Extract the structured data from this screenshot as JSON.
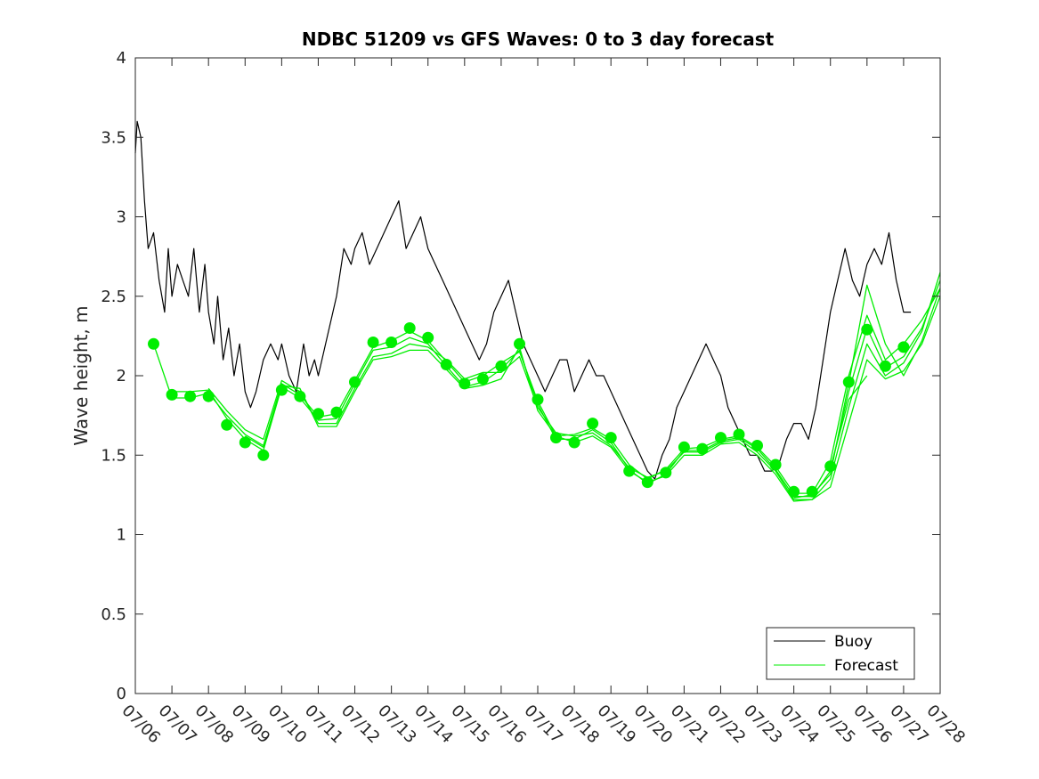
{
  "chart_data": {
    "type": "line",
    "title": "NDBC 51209 vs GFS Waves: 0 to 3 day forecast",
    "xlabel": "",
    "ylabel": "Wave height, m",
    "xlim": [
      0,
      22
    ],
    "ylim": [
      0,
      4
    ],
    "yticks": [
      0,
      0.5,
      1,
      1.5,
      2,
      2.5,
      3,
      3.5,
      4
    ],
    "ytick_labels": [
      "0",
      "0.5",
      "1",
      "1.5",
      "2",
      "2.5",
      "3",
      "3.5",
      "4"
    ],
    "xtick_labels": [
      "07/06",
      "07/07",
      "07/08",
      "07/09",
      "07/10",
      "07/11",
      "07/12",
      "07/13",
      "07/14",
      "07/15",
      "07/16",
      "07/17",
      "07/18",
      "07/19",
      "07/20",
      "07/21",
      "07/22",
      "07/23",
      "07/24",
      "07/25",
      "07/26",
      "07/27",
      "07/28"
    ],
    "legend": {
      "position": "bottom-right",
      "entries": [
        "Buoy",
        "Forecast"
      ]
    },
    "colors": {
      "buoy": "#000000",
      "forecast": "#00ee00",
      "axis": "#262626"
    },
    "series": [
      {
        "name": "Buoy",
        "x": [
          0,
          0.05,
          0.15,
          0.25,
          0.35,
          0.5,
          0.65,
          0.8,
          0.9,
          1.0,
          1.15,
          1.3,
          1.45,
          1.6,
          1.75,
          1.9,
          2.0,
          2.15,
          2.25,
          2.4,
          2.55,
          2.7,
          2.85,
          3.0,
          3.15,
          3.3,
          3.5,
          3.7,
          3.9,
          4.0,
          4.2,
          4.4,
          4.6,
          4.75,
          4.9,
          5.0,
          5.2,
          5.4,
          5.5,
          5.7,
          5.9,
          6.0,
          6.2,
          6.4,
          6.6,
          6.8,
          7.0,
          7.2,
          7.4,
          7.6,
          7.8,
          8.0,
          8.2,
          8.4,
          8.6,
          8.8,
          9.0,
          9.2,
          9.4,
          9.6,
          9.8,
          10.0,
          10.2,
          10.4,
          10.6,
          10.8,
          11.0,
          11.2,
          11.4,
          11.6,
          11.8,
          12.0,
          12.2,
          12.4,
          12.6,
          12.8,
          13.0,
          13.2,
          13.4,
          13.6,
          13.8,
          14.0,
          14.2,
          14.4,
          14.6,
          14.8,
          15.0,
          15.2,
          15.4,
          15.6,
          15.8,
          16.0,
          16.2,
          16.4,
          16.6,
          16.8,
          17.0,
          17.2,
          17.4,
          17.6,
          17.8,
          18.0,
          18.2,
          18.4,
          18.6,
          18.8,
          19.0,
          19.2,
          19.4,
          19.6,
          19.8,
          20.0,
          20.2,
          20.4,
          20.6,
          20.8,
          21.0,
          21.2
        ],
        "values": [
          3.4,
          3.6,
          3.5,
          3.1,
          2.8,
          2.9,
          2.6,
          2.4,
          2.8,
          2.5,
          2.7,
          2.6,
          2.5,
          2.8,
          2.4,
          2.7,
          2.4,
          2.2,
          2.5,
          2.1,
          2.3,
          2.0,
          2.2,
          1.9,
          1.8,
          1.9,
          2.1,
          2.2,
          2.1,
          2.2,
          2.0,
          1.9,
          2.2,
          2.0,
          2.1,
          2.0,
          2.2,
          2.4,
          2.5,
          2.8,
          2.7,
          2.8,
          2.9,
          2.7,
          2.8,
          2.9,
          3.0,
          3.1,
          2.8,
          2.9,
          3.0,
          2.8,
          2.7,
          2.6,
          2.5,
          2.4,
          2.3,
          2.2,
          2.1,
          2.2,
          2.4,
          2.5,
          2.6,
          2.4,
          2.2,
          2.1,
          2.0,
          1.9,
          2.0,
          2.1,
          2.1,
          1.9,
          2.0,
          2.1,
          2.0,
          2.0,
          1.9,
          1.8,
          1.7,
          1.6,
          1.5,
          1.4,
          1.35,
          1.5,
          1.6,
          1.8,
          1.9,
          2.0,
          2.1,
          2.2,
          2.1,
          2.0,
          1.8,
          1.7,
          1.6,
          1.5,
          1.5,
          1.4,
          1.4,
          1.45,
          1.6,
          1.7,
          1.7,
          1.6,
          1.8,
          2.1,
          2.4,
          2.6,
          2.8,
          2.6,
          2.5,
          2.7,
          2.8,
          2.7,
          2.9,
          2.6,
          2.4,
          2.4
        ]
      },
      {
        "name": "Forecast",
        "markers_x": [
          0.5,
          1.0,
          1.5,
          2.0,
          2.5,
          3.0,
          3.5,
          4.0,
          4.5,
          5.0,
          5.5,
          6.0,
          6.5,
          7.0,
          7.5,
          8.0,
          8.5,
          9.0,
          9.5,
          10.0,
          10.5,
          11.0,
          11.5,
          12.0,
          12.5,
          13.0,
          13.5,
          14.0,
          14.5,
          15.0,
          15.5,
          16.0,
          16.5,
          17.0,
          17.5,
          18.0,
          18.5,
          19.0,
          19.5,
          20.0,
          20.5,
          21.0
        ],
        "markers_y": [
          2.2,
          1.88,
          1.87,
          1.87,
          1.69,
          1.58,
          1.5,
          1.91,
          1.87,
          1.76,
          1.77,
          1.96,
          2.21,
          2.21,
          2.3,
          2.24,
          2.07,
          1.95,
          1.98,
          2.06,
          2.2,
          1.85,
          1.61,
          1.58,
          1.7,
          1.61,
          1.4,
          1.33,
          1.39,
          1.55,
          1.54,
          1.61,
          1.63,
          1.56,
          1.44,
          1.27,
          1.27,
          1.43,
          1.96,
          2.29,
          2.06,
          2.18
        ],
        "ensemble": [
          {
            "x": [
              0.5,
              1.0,
              1.5,
              2.0,
              2.5,
              3.0,
              3.5,
              4.0,
              4.5,
              5.0,
              5.5,
              6.0,
              6.5,
              7.0,
              7.5,
              8.0,
              8.5,
              9.0,
              9.5,
              10.0,
              10.5,
              11.0,
              11.5,
              12.0,
              12.5,
              13.0,
              13.5,
              14.0,
              14.5,
              15.0,
              15.5,
              16.0,
              16.5,
              17.0,
              17.5,
              18.0,
              18.5,
              19.0,
              19.5,
              20.0,
              20.5,
              21.0,
              21.5,
              22.0
            ],
            "values": [
              2.2,
              1.86,
              1.86,
              1.89,
              1.75,
              1.63,
              1.56,
              1.95,
              1.88,
              1.74,
              1.76,
              1.97,
              2.18,
              2.22,
              2.28,
              2.22,
              2.09,
              1.96,
              2.0,
              2.08,
              2.15,
              1.84,
              1.62,
              1.63,
              1.67,
              1.6,
              1.44,
              1.35,
              1.41,
              1.54,
              1.55,
              1.6,
              1.62,
              1.55,
              1.43,
              1.26,
              1.26,
              1.46,
              2.0,
              2.38,
              2.1,
              2.2,
              2.35,
              2.55
            ]
          },
          {
            "x": [
              1.0,
              1.5,
              2.0,
              2.5,
              3.0,
              3.5,
              4.0,
              4.5,
              5.0,
              5.5,
              6.0,
              6.5,
              7.0,
              7.5,
              8.0,
              8.5,
              9.0,
              9.5,
              10.0,
              10.5,
              11.0,
              11.5,
              12.0,
              12.5,
              13.0,
              13.5,
              14.0,
              14.5,
              15.0,
              15.5,
              16.0,
              16.5,
              17.0,
              17.5,
              18.0,
              18.5,
              19.0,
              19.5,
              20.0,
              20.5,
              21.0,
              21.5,
              22.0
            ],
            "values": [
              1.9,
              1.9,
              1.91,
              1.73,
              1.6,
              1.53,
              1.93,
              1.86,
              1.72,
              1.73,
              1.95,
              2.16,
              2.18,
              2.24,
              2.2,
              2.06,
              1.93,
              1.96,
              2.04,
              2.16,
              1.82,
              1.6,
              1.6,
              1.66,
              1.58,
              1.41,
              1.32,
              1.38,
              1.53,
              1.53,
              1.59,
              1.61,
              1.54,
              1.41,
              1.24,
              1.24,
              1.4,
              1.9,
              2.3,
              2.05,
              2.12,
              2.3,
              2.6
            ]
          },
          {
            "x": [
              2.0,
              2.5,
              3.0,
              3.5,
              4.0,
              4.5,
              5.0,
              5.5,
              6.0,
              6.5,
              7.0,
              7.5,
              8.0,
              8.5,
              9.0,
              9.5,
              10.0,
              10.5,
              11.0,
              11.5,
              12.0,
              12.5,
              13.0,
              13.5,
              14.0,
              14.5,
              15.0,
              15.5,
              16.0,
              16.5,
              17.0,
              17.5,
              18.0,
              18.5,
              19.0,
              19.5,
              20.0,
              20.5,
              21.0,
              21.5,
              22.0
            ],
            "values": [
              1.92,
              1.78,
              1.66,
              1.6,
              1.97,
              1.9,
              1.7,
              1.7,
              1.92,
              2.12,
              2.14,
              2.2,
              2.18,
              2.1,
              1.98,
              2.02,
              2.02,
              2.12,
              1.8,
              1.64,
              1.62,
              1.64,
              1.56,
              1.42,
              1.36,
              1.4,
              1.52,
              1.52,
              1.58,
              1.6,
              1.52,
              1.4,
              1.22,
              1.22,
              1.35,
              1.8,
              2.2,
              2.0,
              2.08,
              2.28,
              2.65
            ]
          },
          {
            "x": [
              3.0,
              3.5,
              4.0,
              4.5,
              5.0,
              5.5,
              6.0,
              6.5,
              7.0,
              7.5,
              8.0,
              8.5,
              9.0,
              9.5,
              10.0,
              10.5,
              11.0,
              11.5,
              12.0,
              12.5,
              13.0,
              13.5,
              14.0,
              14.5,
              15.0,
              15.5,
              16.0,
              16.5,
              17.0,
              17.5,
              18.0,
              18.5,
              19.0,
              19.5,
              20.0,
              20.5,
              21.0,
              21.5,
              22.0
            ],
            "values": [
              1.62,
              1.55,
              1.94,
              1.92,
              1.68,
              1.68,
              1.9,
              2.1,
              2.12,
              2.16,
              2.16,
              2.04,
              1.92,
              1.94,
              1.98,
              2.18,
              1.78,
              1.62,
              1.58,
              1.62,
              1.55,
              1.4,
              1.33,
              1.37,
              1.5,
              1.5,
              1.57,
              1.58,
              1.5,
              1.38,
              1.21,
              1.22,
              1.3,
              1.7,
              2.1,
              1.98,
              2.03,
              2.2,
              2.5
            ]
          },
          {
            "x": [
              18.0,
              18.5,
              19.0,
              19.5,
              20.0,
              20.5,
              21.0,
              21.5,
              22.0
            ],
            "values": [
              1.23,
              1.25,
              1.38,
              1.95,
              2.57,
              2.2,
              2.0,
              2.22,
              2.55
            ]
          },
          {
            "x": [
              19.0,
              19.5,
              20.0
            ],
            "values": [
              1.42,
              1.85,
              2.0
            ]
          }
        ]
      }
    ]
  }
}
